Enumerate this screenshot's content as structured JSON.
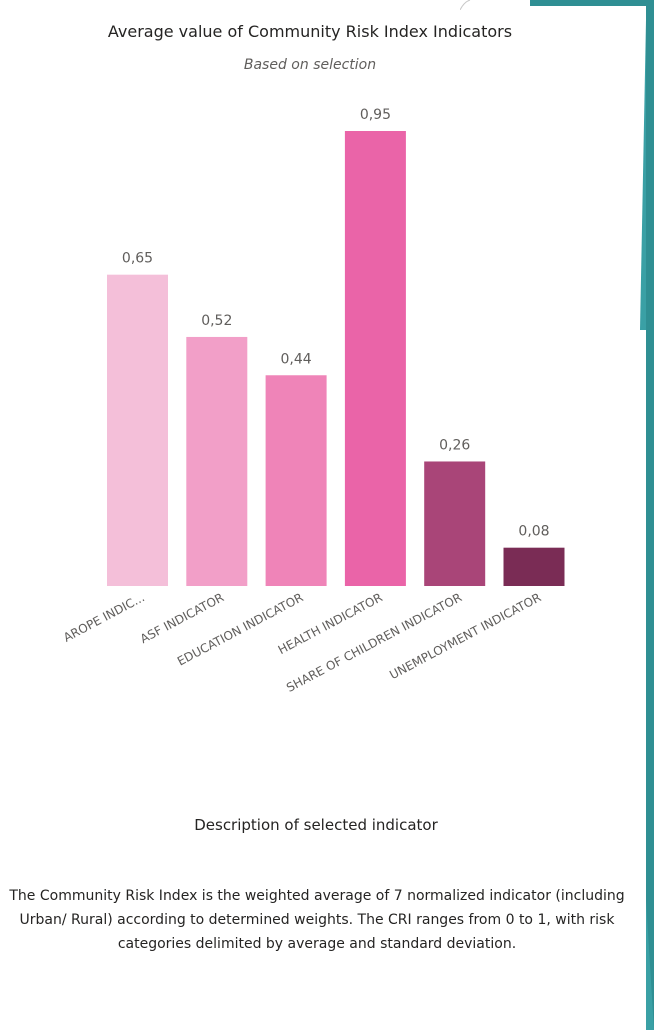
{
  "chart_data": {
    "type": "bar",
    "title": "Average value of Community Risk Index Indicators",
    "subtitle": "Based on selection",
    "categories": [
      "AROPE INDIC...",
      "ASF INDICATOR",
      "EDUCATION INDICATOR",
      "HEALTH INDICATOR",
      "SHARE OF CHILDREN INDICATOR",
      "UNEMPLOYMENT INDICATOR"
    ],
    "values": [
      0.65,
      0.52,
      0.44,
      0.95,
      0.26,
      0.08
    ],
    "data_labels": [
      "0,65",
      "0,52",
      "0,44",
      "0,95",
      "0,26",
      "0,08"
    ],
    "colors": [
      "#f4bfd9",
      "#f29fc8",
      "#ef84b8",
      "#ea64a8",
      "#a94578",
      "#7a2c55"
    ],
    "ylim": [
      0,
      0.95
    ],
    "grid": false,
    "legend": "none",
    "xlabel": "",
    "ylabel": ""
  },
  "description": {
    "title": "Description of selected indicator",
    "body": "The Community Risk Index is the weighted average of 7 normalized indicator (including Urban/ Rural) according to determined weights. The CRI ranges from 0 to 1, with risk categories delimited by average and standard deviation."
  },
  "decor": {
    "edge_color": "#2f8f93"
  }
}
